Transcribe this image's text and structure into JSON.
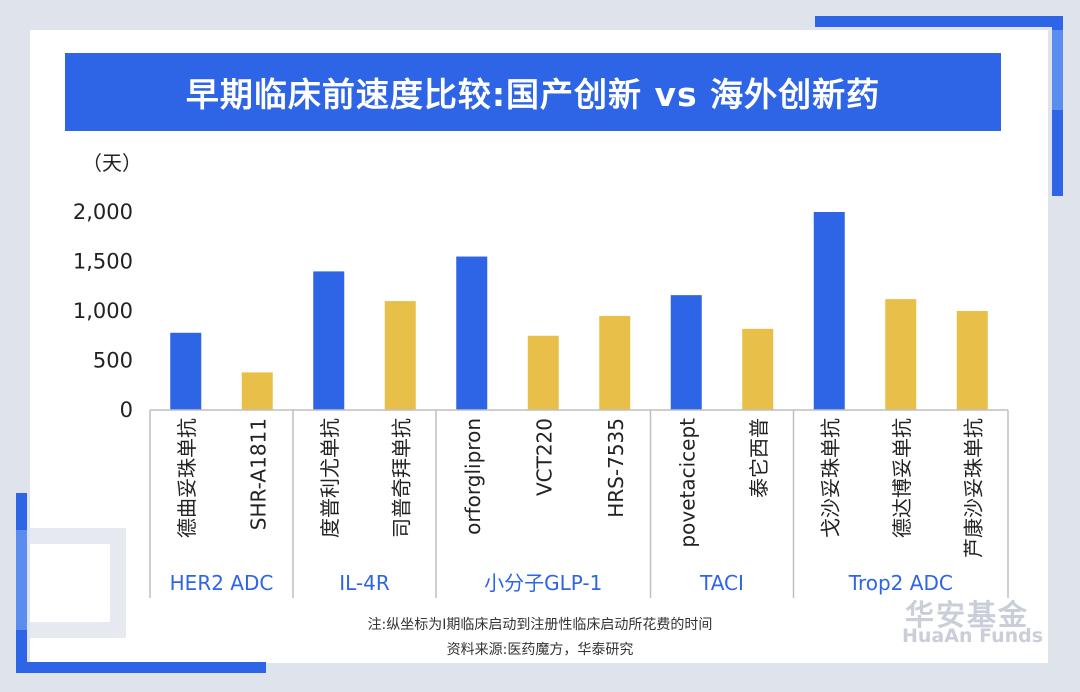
{
  "title": "早期临床前速度比较:国产创新 vs 海外创新药",
  "notes": {
    "note": "注:纵坐标为I期临床启动到注册性临床启动所花费的时间",
    "source": "资料来源:医药魔方，华泰研究"
  },
  "logo": {
    "cn": "华安基金",
    "en": "HuaAn Funds"
  },
  "colors": {
    "domestic": "#2e64e6",
    "overseas": "#e8bf48",
    "title_bg": "#2e64e6",
    "group_label": "#2e64e6"
  },
  "chart_data": {
    "type": "bar",
    "ylabel": "（天）",
    "ylim": [
      0,
      2000
    ],
    "yticks": [
      0,
      500,
      1000,
      1500,
      2000
    ],
    "ytick_labels": [
      "0",
      "500",
      "1,000",
      "1,500",
      "2,000"
    ],
    "grid": false,
    "categories": [
      "德曲妥珠单抗",
      "SHR-A1811",
      "度普利尤单抗",
      "司普奇拜单抗",
      "orforglipron",
      "VCT220",
      "HRS-7535",
      "povetacicept",
      "泰它西普",
      "戈沙妥珠单抗",
      "德达博妥单抗",
      "芦康沙妥珠单抗"
    ],
    "values": [
      780,
      380,
      1400,
      1100,
      1550,
      750,
      950,
      1160,
      820,
      2000,
      1120,
      1000
    ],
    "origin": [
      "overseas_blue",
      "domestic_yellow"
    ],
    "bar_types": [
      "blue",
      "yellow",
      "blue",
      "yellow",
      "blue",
      "yellow",
      "yellow",
      "blue",
      "yellow",
      "blue",
      "yellow",
      "yellow"
    ],
    "groups": [
      {
        "label": "HER2 ADC",
        "start": 0,
        "end": 1
      },
      {
        "label": "IL-4R",
        "start": 2,
        "end": 3
      },
      {
        "label": "小分子GLP-1",
        "start": 4,
        "end": 6
      },
      {
        "label": "TACI",
        "start": 7,
        "end": 8
      },
      {
        "label": "Trop2 ADC",
        "start": 9,
        "end": 11
      }
    ]
  }
}
